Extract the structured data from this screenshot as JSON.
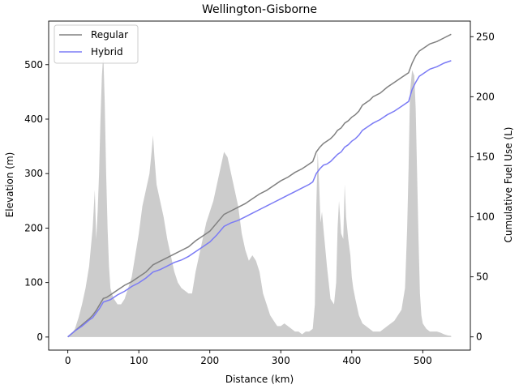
{
  "chart_data": {
    "type": "line",
    "title": "Wellington-Gisborne",
    "xlabel": "Distance (km)",
    "ylabel": "Elevation (m)",
    "y2label": "Cumulative Fuel Use (L)",
    "xlim": [
      -27,
      567
    ],
    "ylim": [
      -24,
      580
    ],
    "y2lim": [
      -11,
      263
    ],
    "xticks": [
      0,
      100,
      200,
      300,
      400,
      500
    ],
    "yticks": [
      0,
      100,
      200,
      300,
      400,
      500
    ],
    "y2ticks": [
      0,
      50,
      100,
      150,
      200,
      250
    ],
    "grid": false,
    "legend": "upper-left",
    "colors": {
      "elevation": "#cccccc",
      "regular": "#808080",
      "hybrid": "#7b7bf5"
    },
    "elevation": {
      "x": [
        0,
        5,
        10,
        15,
        20,
        25,
        30,
        35,
        38,
        40,
        42,
        44,
        46,
        48,
        50,
        52,
        54,
        56,
        58,
        60,
        62,
        65,
        70,
        75,
        80,
        85,
        90,
        95,
        100,
        105,
        110,
        115,
        118,
        120,
        122,
        125,
        130,
        135,
        140,
        145,
        150,
        155,
        160,
        165,
        170,
        175,
        180,
        185,
        190,
        195,
        200,
        205,
        210,
        215,
        220,
        225,
        230,
        235,
        240,
        245,
        250,
        255,
        260,
        265,
        270,
        275,
        280,
        285,
        290,
        295,
        300,
        305,
        310,
        315,
        320,
        325,
        330,
        335,
        340,
        345,
        348,
        350,
        352,
        354,
        356,
        358,
        360,
        365,
        370,
        375,
        378,
        380,
        382,
        385,
        388,
        390,
        392,
        395,
        398,
        400,
        402,
        405,
        410,
        415,
        420,
        425,
        430,
        435,
        440,
        445,
        450,
        455,
        460,
        465,
        470,
        475,
        478,
        480,
        482,
        485,
        488,
        490,
        492,
        494,
        496,
        498,
        500,
        505,
        510,
        515,
        520,
        525,
        530,
        535,
        540
      ],
      "values": [
        0,
        5,
        15,
        35,
        60,
        90,
        130,
        200,
        270,
        180,
        230,
        300,
        400,
        480,
        520,
        430,
        300,
        200,
        130,
        90,
        80,
        70,
        60,
        60,
        70,
        90,
        110,
        150,
        190,
        240,
        270,
        300,
        340,
        370,
        330,
        280,
        250,
        220,
        180,
        150,
        120,
        100,
        90,
        85,
        80,
        80,
        120,
        150,
        180,
        210,
        230,
        250,
        280,
        310,
        340,
        330,
        300,
        270,
        240,
        190,
        160,
        140,
        150,
        140,
        120,
        80,
        60,
        40,
        30,
        20,
        20,
        25,
        20,
        15,
        10,
        10,
        5,
        10,
        10,
        15,
        60,
        240,
        340,
        280,
        210,
        230,
        200,
        130,
        70,
        60,
        100,
        200,
        250,
        190,
        180,
        280,
        220,
        180,
        150,
        110,
        90,
        70,
        40,
        25,
        20,
        15,
        10,
        10,
        10,
        15,
        20,
        25,
        30,
        40,
        50,
        90,
        200,
        310,
        450,
        490,
        480,
        420,
        300,
        180,
        80,
        40,
        25,
        15,
        10,
        10,
        10,
        8,
        5,
        3,
        2
      ]
    },
    "series": [
      {
        "name": "Regular",
        "axis": "right",
        "x": [
          0,
          10,
          20,
          30,
          35,
          40,
          45,
          50,
          55,
          60,
          70,
          80,
          90,
          100,
          110,
          120,
          130,
          140,
          150,
          160,
          170,
          180,
          190,
          200,
          210,
          220,
          230,
          240,
          250,
          260,
          270,
          280,
          290,
          300,
          310,
          320,
          330,
          340,
          345,
          350,
          355,
          360,
          365,
          370,
          375,
          380,
          385,
          390,
          395,
          400,
          405,
          410,
          415,
          420,
          425,
          430,
          440,
          450,
          460,
          470,
          480,
          485,
          490,
          495,
          500,
          505,
          510,
          520,
          530,
          540
        ],
        "values": [
          0,
          5,
          10,
          15,
          18,
          22,
          27,
          32,
          33,
          35,
          39,
          43,
          46,
          50,
          54,
          60,
          63,
          66,
          69,
          72,
          75,
          80,
          84,
          88,
          95,
          102,
          105,
          108,
          111,
          115,
          119,
          122,
          126,
          130,
          133,
          137,
          140,
          144,
          146,
          154,
          158,
          161,
          163,
          165,
          168,
          172,
          174,
          178,
          180,
          183,
          185,
          188,
          193,
          195,
          197,
          200,
          203,
          208,
          212,
          216,
          220,
          228,
          234,
          238,
          240,
          242,
          244,
          246,
          249,
          252
        ]
      },
      {
        "name": "Hybrid",
        "axis": "right",
        "x": [
          0,
          10,
          20,
          30,
          35,
          40,
          45,
          50,
          55,
          60,
          70,
          80,
          90,
          100,
          110,
          120,
          130,
          140,
          150,
          160,
          170,
          180,
          190,
          200,
          210,
          220,
          230,
          240,
          250,
          260,
          270,
          280,
          290,
          300,
          310,
          320,
          330,
          340,
          345,
          350,
          355,
          360,
          365,
          370,
          375,
          380,
          385,
          390,
          395,
          400,
          405,
          410,
          415,
          420,
          425,
          430,
          440,
          450,
          460,
          470,
          480,
          485,
          490,
          495,
          500,
          505,
          510,
          520,
          530,
          540
        ],
        "values": [
          0,
          5,
          9,
          14,
          16,
          20,
          24,
          29,
          30,
          31,
          35,
          38,
          42,
          45,
          49,
          54,
          56,
          59,
          62,
          64,
          67,
          71,
          75,
          79,
          85,
          92,
          95,
          97,
          100,
          103,
          106,
          109,
          112,
          115,
          118,
          121,
          124,
          127,
          129,
          136,
          140,
          143,
          144,
          146,
          149,
          152,
          154,
          158,
          160,
          163,
          165,
          168,
          172,
          174,
          176,
          178,
          181,
          185,
          188,
          192,
          196,
          206,
          212,
          217,
          219,
          221,
          223,
          225,
          228,
          230
        ]
      }
    ]
  }
}
